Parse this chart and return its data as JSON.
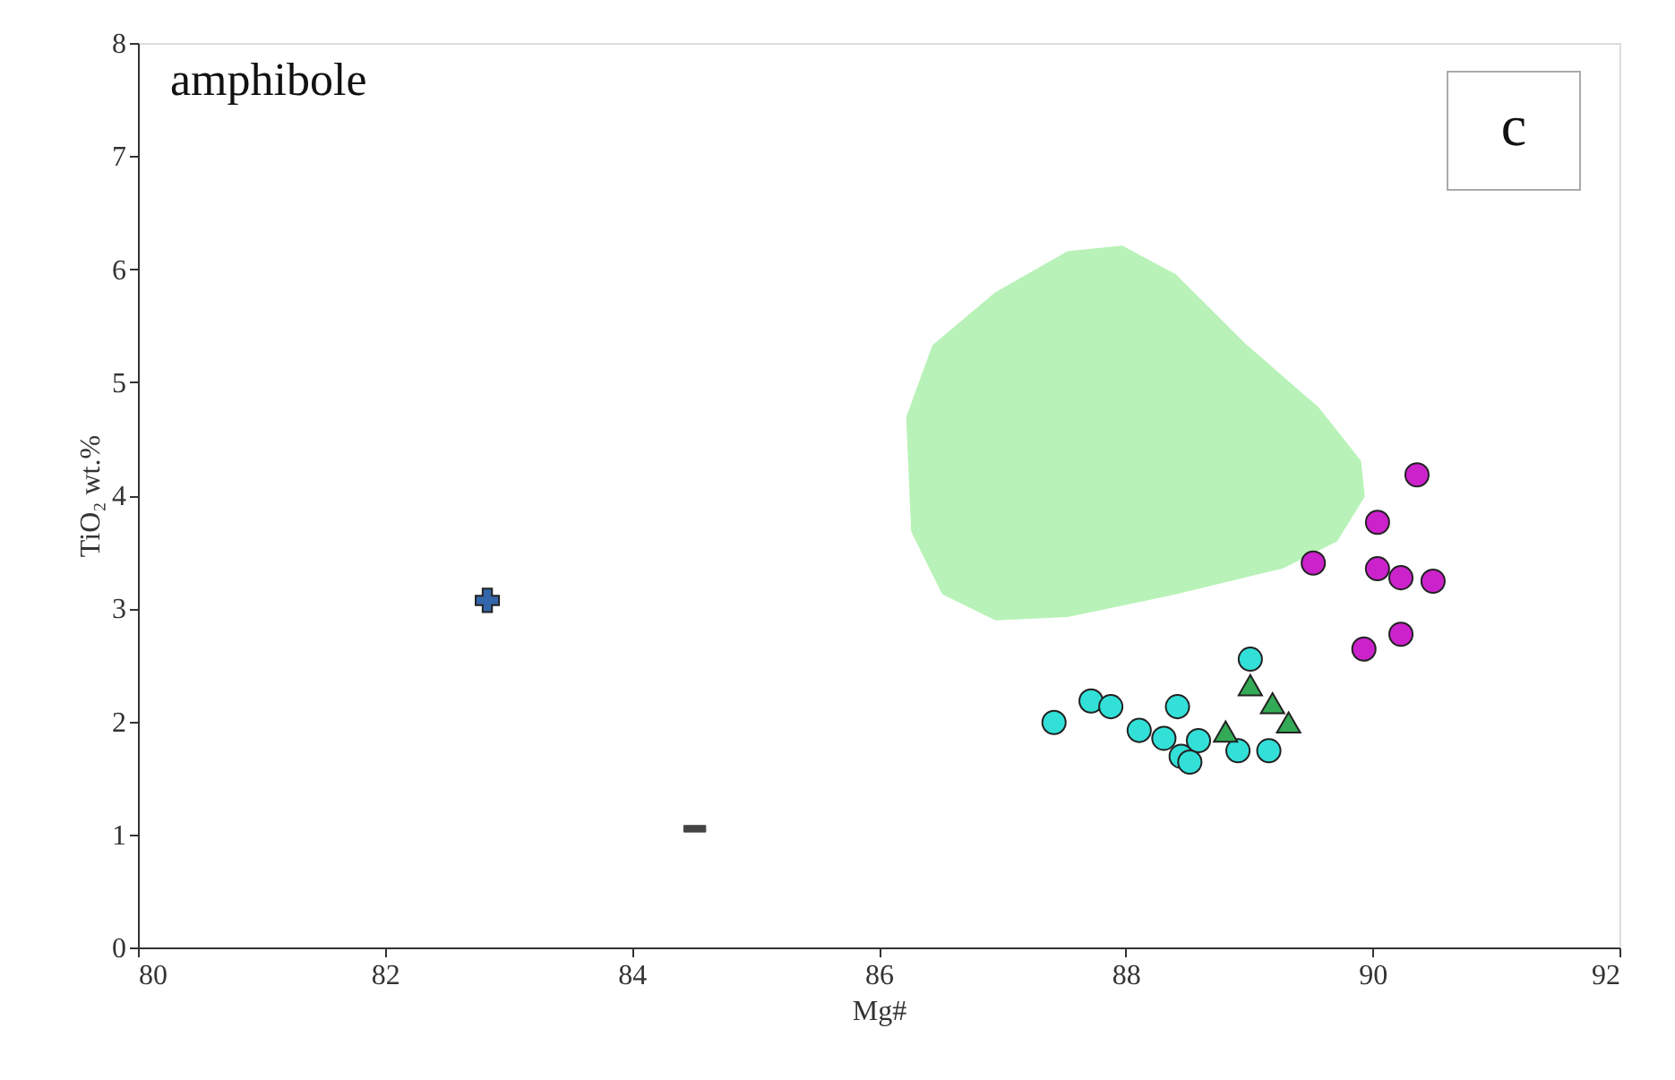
{
  "chart_data": {
    "type": "scatter",
    "xlabel": "Mg#",
    "ylabel": "TiO₂ wt.%",
    "xlim": [
      80,
      92
    ],
    "xticks": [
      80,
      82,
      84,
      86,
      88,
      90,
      92
    ],
    "ylim": [
      0,
      8
    ],
    "yticks": [
      0,
      1,
      2,
      3,
      4,
      5,
      6,
      7,
      8
    ],
    "grid": false,
    "annotations": [
      "amphibole",
      "c"
    ],
    "series": [
      {
        "type": "area",
        "color": "#b8f2b8",
        "x": [
          86.23,
          86.44,
          86.95,
          87.53,
          87.97,
          88.4,
          88.98,
          89.56,
          89.9,
          89.93,
          89.71,
          89.27,
          88.4,
          87.53,
          86.95,
          86.52,
          86.27
        ],
        "values": [
          4.69,
          5.32,
          5.79,
          6.15,
          6.2,
          5.95,
          5.32,
          4.77,
          4.3,
          3.99,
          3.6,
          3.36,
          3.13,
          2.93,
          2.9,
          3.13,
          3.68
        ]
      },
      {
        "marker": "circle",
        "color": "#cc22cc",
        "x": [
          89.52,
          90.04,
          90.36,
          90.04,
          90.23,
          90.49,
          89.93,
          90.23
        ],
        "values": [
          3.4,
          3.76,
          4.18,
          3.35,
          3.27,
          3.24,
          2.64,
          2.77
        ]
      },
      {
        "marker": "circle",
        "color": "#33e0d8",
        "x": [
          87.42,
          87.72,
          87.88,
          88.42,
          88.11,
          88.31,
          88.59,
          88.45,
          88.52,
          88.91,
          89.16,
          89.01
        ],
        "values": [
          1.99,
          2.18,
          2.13,
          2.13,
          1.92,
          1.85,
          1.83,
          1.69,
          1.64,
          1.74,
          1.74,
          2.55
        ]
      },
      {
        "marker": "triangle",
        "color": "#33aa55",
        "x": [
          89.01,
          89.19,
          89.32,
          88.81
        ],
        "values": [
          2.32,
          2.16,
          1.99,
          1.91
        ]
      },
      {
        "marker": "cross",
        "color": "#3366aa",
        "x": [
          82.83
        ],
        "values": [
          3.07
        ]
      },
      {
        "marker": "square",
        "color": "#444444",
        "x": [
          84.51
        ],
        "values": [
          1.05
        ]
      }
    ]
  }
}
